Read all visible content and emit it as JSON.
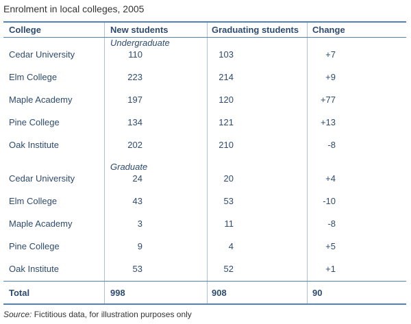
{
  "title": "Enrolment in local colleges, 2005",
  "headers": [
    "College",
    "New students",
    "Graduating students",
    "Change"
  ],
  "sections": [
    {
      "label": "Undergraduate",
      "rows": [
        {
          "college": "Cedar University",
          "new": "110",
          "grad": "103",
          "change": "+7"
        },
        {
          "college": "Elm College",
          "new": "223",
          "grad": "214",
          "change": "+9"
        },
        {
          "college": "Maple Academy",
          "new": "197",
          "grad": "120",
          "change": "+77"
        },
        {
          "college": "Pine College",
          "new": "134",
          "grad": "121",
          "change": "+13"
        },
        {
          "college": "Oak Institute",
          "new": "202",
          "grad": "210",
          "change": "-8"
        }
      ]
    },
    {
      "label": "Graduate",
      "rows": [
        {
          "college": "Cedar University",
          "new": "24",
          "grad": "20",
          "change": "+4"
        },
        {
          "college": "Elm College",
          "new": "43",
          "grad": "53",
          "change": "-10"
        },
        {
          "college": "Maple Academy",
          "new": "3",
          "grad": "11",
          "change": "-8"
        },
        {
          "college": "Pine College",
          "new": "9",
          "grad": "4",
          "change": "+5"
        },
        {
          "college": "Oak Institute",
          "new": "53",
          "grad": "52",
          "change": "+1"
        }
      ]
    }
  ],
  "total": {
    "label": "Total",
    "new": "998",
    "grad": "908",
    "change": "90"
  },
  "source": {
    "label": "Source:",
    "text": " Fictitious data, for illustration purposes only"
  },
  "colors": {
    "rule": "#4f81bd",
    "text": "#2e4a6f"
  }
}
